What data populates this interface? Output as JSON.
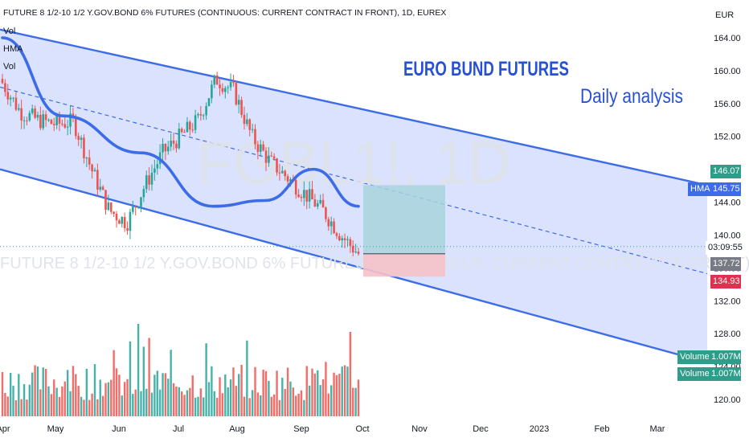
{
  "header": {
    "title": "FUTURE 8 1/2-10 1/2 Y.GOV.BOND 6% FUTURES (CONTINUOUS: CURRENT CONTRACT IN FRONT), 1D, EUREX",
    "indicators": [
      "Vol",
      "HMA",
      "Vol"
    ]
  },
  "watermark": {
    "symbol": "FGBL1!, 1D",
    "description": "FUTURE 8 1/2-10 1/2 Y.GOV.BOND 6% FUTURES (CONTINUOUS: CURRENT CONTRACT IN FRONT)"
  },
  "annotations": {
    "title": "EURO BUND FUTURES",
    "subtitle": "Daily analysis"
  },
  "price_axis": {
    "currency": "EUR",
    "ticks": [
      "164.00",
      "160.00",
      "156.00",
      "152.00",
      "148.00",
      "144.00",
      "140.00",
      "136.00",
      "132.00",
      "128.00",
      "124.00",
      "120.00"
    ]
  },
  "time_axis": {
    "ticks": [
      "Apr",
      "May",
      "Jun",
      "Jul",
      "Aug",
      "Sep",
      "Oct",
      "Nov",
      "Dec",
      "2023",
      "Feb",
      "Mar"
    ]
  },
  "price_tags": {
    "upper": "146.07",
    "hma_label": "HMA",
    "hma_value": "145.75",
    "countdown": "03:09:55",
    "last": "137.72",
    "lower": "134.93"
  },
  "volume_tags": [
    {
      "label": "Volume",
      "value": "1.007M"
    },
    {
      "label": "Volume",
      "value": "1.007M"
    }
  ],
  "colors": {
    "up": "#26a69a",
    "down": "#ef5350",
    "channel_fill": "#d6dffd",
    "channel_line": "#3d6ce8",
    "hma": "#3d6ce8",
    "annotation_text": "#2650d8",
    "target_zone": "#a7d4dc",
    "stop_zone": "#f5c2c8"
  },
  "chart_data": {
    "type": "line",
    "title": "FUTURE 8 1/2-10 1/2 Y.GOV.BOND 6% FUTURES (CONTINUOUS: CURRENT CONTRACT IN FRONT), 1D, EUREX",
    "x": [
      "Apr",
      "May",
      "Jun",
      "Jul",
      "Aug",
      "Sep",
      "Oct"
    ],
    "series": [
      {
        "name": "HMA",
        "values": [
          164.0,
          154.5,
          150.0,
          143.5,
          144.2,
          148.0,
          143.5
        ]
      }
    ],
    "closes": [
      158.5,
      155.0,
      154.0,
      153.5,
      153.8,
      148.0,
      143.0,
      141.5,
      146.0,
      150.0,
      152.0,
      154.0,
      159.0,
      157.5,
      152.0,
      149.0,
      147.0,
      145.0,
      143.0,
      140.0,
      137.72
    ],
    "channel": {
      "upper": {
        "start": 165.0,
        "end": 146.07
      },
      "lower": {
        "start": 148.0,
        "end": 124.5
      },
      "mid_dashed": {
        "start": 158.0,
        "end": 135.3
      }
    },
    "trade_box": {
      "entry": 137.72,
      "target": 146.07,
      "stop": 134.93
    },
    "volume": {
      "last": "1.007M"
    },
    "ylim": [
      119.0,
      166.0
    ],
    "y_ticks": [
      164,
      160,
      156,
      152,
      148,
      144,
      140,
      136,
      132,
      128,
      124,
      120
    ]
  }
}
